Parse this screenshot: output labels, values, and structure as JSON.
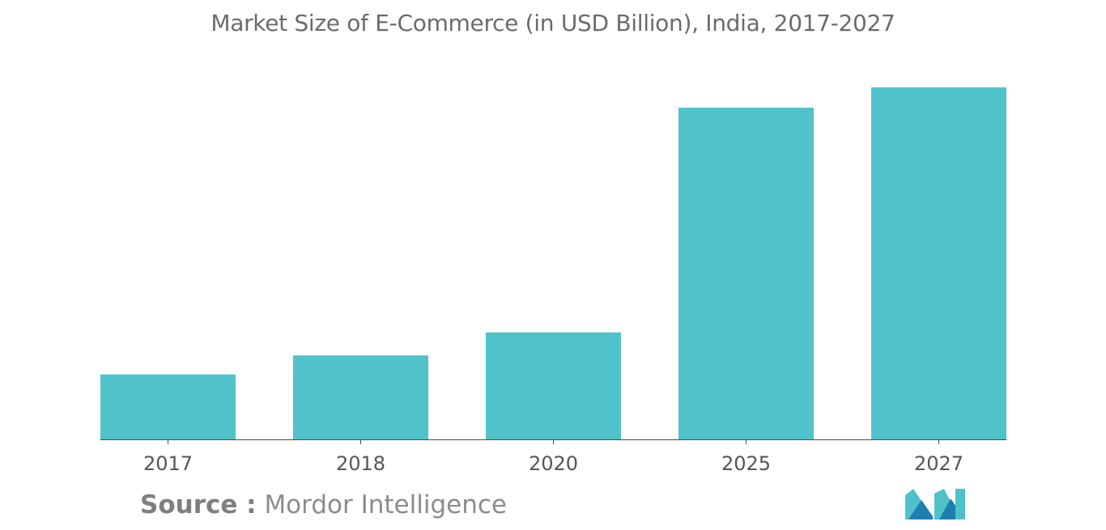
{
  "source": {
    "label": "Source :",
    "value": "Mordor Intelligence"
  },
  "colors": {
    "bar": "#50c2c9",
    "baseline": "#4a4a4a",
    "logo_dark": "#1e7fae",
    "logo_light": "#4fc1cb"
  },
  "logo_icon": "mordor-intelligence-logo",
  "chart_data": {
    "type": "bar",
    "title": "Market Size of E-Commerce (in USD Billion), India, 2017-2027",
    "xlabel": "",
    "ylabel": "",
    "categories": [
      "2017",
      "2018",
      "2020",
      "2025",
      "2027"
    ],
    "values": [
      24.0,
      31.0,
      39.5,
      122.5,
      130.0
    ],
    "ylim": [
      0,
      130
    ],
    "grid": false,
    "legend": "none"
  }
}
